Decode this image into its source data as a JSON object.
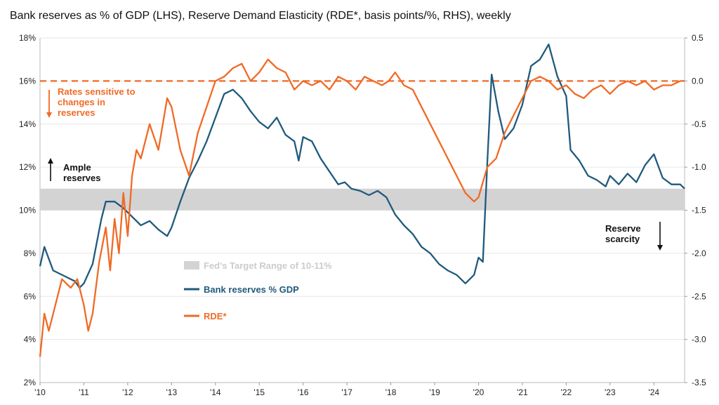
{
  "colors": {
    "reserves": "#1f5a7c",
    "rde": "#f06a25",
    "band": "#d3d3d3",
    "band_text": "#cccccc",
    "grid": "#e6e6e6",
    "ink": "#111111"
  },
  "chart_data": {
    "type": "line",
    "title": "Bank reserves as % of GDP (LHS), Reserve Demand Elasticity (RDE*, basis points/%, RHS), weekly",
    "x_range": [
      2010.0,
      2024.7
    ],
    "x_ticks": [
      2010,
      2011,
      2012,
      2013,
      2014,
      2015,
      2016,
      2017,
      2018,
      2019,
      2020,
      2021,
      2022,
      2023,
      2024
    ],
    "x_tick_labels": [
      "'10",
      "'11",
      "'12",
      "'13",
      "'14",
      "'15",
      "'16",
      "'17",
      "'18",
      "'19",
      "'20",
      "'21",
      "'22",
      "'23",
      "'24"
    ],
    "y_left": {
      "ylim": [
        2,
        18
      ],
      "ticks": [
        2,
        4,
        6,
        8,
        10,
        12,
        14,
        16,
        18
      ],
      "tick_labels": [
        "2%",
        "4%",
        "6%",
        "8%",
        "10%",
        "12%",
        "14%",
        "16%",
        "18%"
      ]
    },
    "y_right": {
      "ylim": [
        -3.5,
        0.5
      ],
      "ticks": [
        -3.5,
        -3.0,
        -2.5,
        -2.0,
        -1.5,
        -1.0,
        -0.5,
        0.0,
        0.5
      ],
      "tick_labels": [
        "-3.5",
        "-3.0",
        "-2.5",
        "-2.0",
        "-1.5",
        "-1.0",
        "-0.5",
        "0.0",
        "0.5"
      ]
    },
    "target_band": {
      "low": 10,
      "high": 11,
      "label": "Fed's Target Range of 10-11%"
    },
    "reference_line": {
      "axis": "right",
      "value": 0.0
    },
    "series": [
      {
        "name": "Bank reserves % GDP",
        "axis": "left",
        "color_key": "reserves",
        "x": [
          2010.0,
          2010.1,
          2010.3,
          2010.6,
          2010.8,
          2010.9,
          2011.0,
          2011.2,
          2011.4,
          2011.5,
          2011.7,
          2011.9,
          2012.1,
          2012.3,
          2012.5,
          2012.7,
          2012.9,
          2013.0,
          2013.2,
          2013.4,
          2013.6,
          2013.8,
          2014.0,
          2014.2,
          2014.4,
          2014.6,
          2014.8,
          2015.0,
          2015.2,
          2015.4,
          2015.6,
          2015.8,
          2015.9,
          2016.0,
          2016.2,
          2016.4,
          2016.6,
          2016.8,
          2016.95,
          2017.1,
          2017.3,
          2017.5,
          2017.7,
          2017.9,
          2018.1,
          2018.3,
          2018.5,
          2018.7,
          2018.9,
          2019.1,
          2019.3,
          2019.5,
          2019.7,
          2019.9,
          2020.0,
          2020.1,
          2020.2,
          2020.3,
          2020.45,
          2020.6,
          2020.8,
          2021.0,
          2021.2,
          2021.4,
          2021.6,
          2021.8,
          2022.0,
          2022.1,
          2022.3,
          2022.5,
          2022.7,
          2022.9,
          2023.0,
          2023.2,
          2023.4,
          2023.6,
          2023.8,
          2024.0,
          2024.2,
          2024.4,
          2024.6,
          2024.7
        ],
        "values": [
          7.4,
          8.3,
          7.2,
          6.9,
          6.7,
          6.4,
          6.6,
          7.5,
          9.6,
          10.4,
          10.4,
          10.1,
          9.7,
          9.3,
          9.5,
          9.1,
          8.8,
          9.2,
          10.4,
          11.5,
          12.3,
          13.2,
          14.3,
          15.4,
          15.6,
          15.2,
          14.6,
          14.1,
          13.8,
          14.3,
          13.5,
          13.2,
          12.3,
          13.4,
          13.2,
          12.4,
          11.8,
          11.2,
          11.3,
          11.0,
          10.9,
          10.7,
          10.9,
          10.6,
          9.8,
          9.3,
          8.9,
          8.3,
          8.0,
          7.5,
          7.2,
          7.0,
          6.6,
          7.0,
          7.8,
          7.6,
          12.2,
          16.3,
          14.6,
          13.3,
          13.8,
          14.9,
          16.7,
          17.0,
          17.7,
          16.2,
          15.3,
          12.8,
          12.3,
          11.6,
          11.4,
          11.1,
          11.6,
          11.2,
          11.7,
          11.3,
          12.1,
          12.6,
          11.5,
          11.2,
          11.2,
          11.0
        ]
      },
      {
        "name": "RDE*",
        "axis": "right",
        "color_key": "rde",
        "x": [
          2010.0,
          2010.1,
          2010.2,
          2010.35,
          2010.5,
          2010.7,
          2010.85,
          2011.0,
          2011.1,
          2011.2,
          2011.35,
          2011.5,
          2011.6,
          2011.7,
          2011.8,
          2011.9,
          2012.0,
          2012.1,
          2012.2,
          2012.3,
          2012.5,
          2012.7,
          2012.9,
          2013.0,
          2013.2,
          2013.4,
          2013.6,
          2013.8,
          2014.0,
          2014.2,
          2014.4,
          2014.6,
          2014.8,
          2015.0,
          2015.2,
          2015.4,
          2015.6,
          2015.8,
          2016.0,
          2016.2,
          2016.4,
          2016.6,
          2016.8,
          2017.0,
          2017.2,
          2017.4,
          2017.6,
          2017.8,
          2017.95,
          2018.1,
          2018.3,
          2018.5,
          2018.7,
          2018.9,
          2019.1,
          2019.3,
          2019.5,
          2019.7,
          2019.9,
          2020.0,
          2020.2,
          2020.4,
          2020.6,
          2020.8,
          2021.0,
          2021.2,
          2021.4,
          2021.6,
          2021.8,
          2022.0,
          2022.2,
          2022.4,
          2022.6,
          2022.8,
          2023.0,
          2023.2,
          2023.4,
          2023.6,
          2023.8,
          2024.0,
          2024.2,
          2024.4,
          2024.6,
          2024.7
        ],
        "values": [
          -3.2,
          -2.7,
          -2.9,
          -2.6,
          -2.3,
          -2.4,
          -2.3,
          -2.6,
          -2.9,
          -2.7,
          -2.1,
          -1.7,
          -2.2,
          -1.6,
          -2.0,
          -1.3,
          -1.8,
          -1.1,
          -0.8,
          -0.9,
          -0.5,
          -0.8,
          -0.2,
          -0.3,
          -0.8,
          -1.1,
          -0.6,
          -0.3,
          0.0,
          0.05,
          0.15,
          0.2,
          0.0,
          0.1,
          0.25,
          0.15,
          0.1,
          -0.1,
          0.0,
          -0.05,
          0.0,
          -0.1,
          0.05,
          0.0,
          -0.1,
          0.05,
          0.0,
          -0.05,
          0.0,
          0.1,
          -0.05,
          -0.1,
          -0.3,
          -0.5,
          -0.7,
          -0.9,
          -1.1,
          -1.3,
          -1.4,
          -1.35,
          -1.0,
          -0.9,
          -0.6,
          -0.4,
          -0.2,
          0.0,
          0.05,
          0.0,
          -0.1,
          -0.05,
          -0.15,
          -0.2,
          -0.1,
          -0.05,
          -0.15,
          -0.05,
          0.0,
          -0.05,
          0.0,
          -0.1,
          -0.05,
          -0.05,
          0.0,
          0.0
        ]
      }
    ],
    "legend": [
      {
        "label": "Fed's Target Range of 10-11%",
        "swatch": "band"
      },
      {
        "label": "Bank reserves % GDP",
        "swatch": "reserves"
      },
      {
        "label": "RDE*",
        "swatch": "rde"
      }
    ],
    "annotations": {
      "rates_sensitive": "Rates sensitive to changes in reserves",
      "ample_reserves": "Ample reserves",
      "reserve_scarcity": "Reserve scarcity"
    }
  }
}
